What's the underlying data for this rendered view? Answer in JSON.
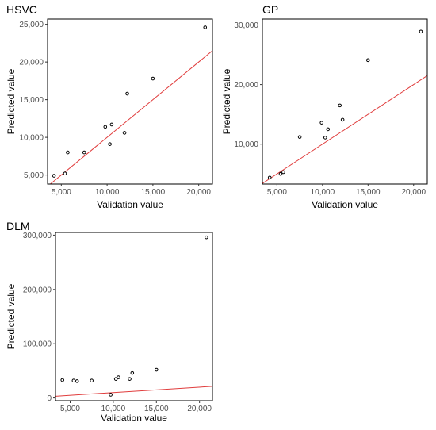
{
  "chart_data": [
    {
      "type": "scatter",
      "title": "HSVC",
      "xlabel": "Validation value",
      "ylabel": "Predicted value",
      "xlim": [
        3500,
        21500
      ],
      "ylim": [
        3800,
        25700
      ],
      "xticks": [
        5000,
        10000,
        15000,
        20000
      ],
      "xtick_labels": [
        "5,000",
        "10,000",
        "15,000",
        "20,000"
      ],
      "yticks": [
        5000,
        10000,
        15000,
        20000,
        25000
      ],
      "ytick_labels": [
        "5,000",
        "10,000",
        "15,000",
        "20,000",
        "25,000"
      ],
      "points": [
        {
          "x": 4200,
          "y": 4900
        },
        {
          "x": 5400,
          "y": 5200
        },
        {
          "x": 5700,
          "y": 8000
        },
        {
          "x": 7500,
          "y": 8000
        },
        {
          "x": 9800,
          "y": 11400
        },
        {
          "x": 10300,
          "y": 9100
        },
        {
          "x": 10500,
          "y": 11700
        },
        {
          "x": 11900,
          "y": 10600
        },
        {
          "x": 12200,
          "y": 15800
        },
        {
          "x": 15000,
          "y": 17800
        },
        {
          "x": 20700,
          "y": 24600
        }
      ],
      "fit_line": {
        "x": [
          3500,
          21500
        ],
        "y": [
          3500,
          21500
        ]
      },
      "grid": false,
      "legend": "none"
    },
    {
      "type": "scatter",
      "title": "GP",
      "xlabel": "Validation value",
      "ylabel": "Predicted value",
      "xlim": [
        3400,
        21500
      ],
      "ylim": [
        3300,
        31000
      ],
      "xticks": [
        5000,
        10000,
        15000,
        20000
      ],
      "xtick_labels": [
        "5,000",
        "10,000",
        "15,000",
        "20,000"
      ],
      "yticks": [
        10000,
        20000,
        30000
      ],
      "ytick_labels": [
        "10,000",
        "20,000",
        "30,000"
      ],
      "points": [
        {
          "x": 4200,
          "y": 4400
        },
        {
          "x": 5400,
          "y": 5000
        },
        {
          "x": 5700,
          "y": 5300
        },
        {
          "x": 7500,
          "y": 11200
        },
        {
          "x": 9900,
          "y": 13600
        },
        {
          "x": 10300,
          "y": 11100
        },
        {
          "x": 10600,
          "y": 12500
        },
        {
          "x": 11900,
          "y": 16500
        },
        {
          "x": 12200,
          "y": 14100
        },
        {
          "x": 15000,
          "y": 24100
        },
        {
          "x": 20800,
          "y": 28900
        }
      ],
      "fit_line": {
        "x": [
          3400,
          21500
        ],
        "y": [
          3400,
          21500
        ]
      },
      "grid": false,
      "legend": "none"
    },
    {
      "type": "scatter",
      "title": "DLM",
      "xlabel": "Validation value",
      "ylabel": "Predicted value",
      "xlim": [
        3300,
        21500
      ],
      "ylim": [
        -5000,
        305000
      ],
      "xticks": [
        5000,
        10000,
        15000,
        20000
      ],
      "xtick_labels": [
        "5,000",
        "10,000",
        "15,000",
        "20,000"
      ],
      "yticks": [
        0,
        100000,
        200000,
        300000
      ],
      "ytick_labels": [
        "0",
        "100,000",
        "200,000",
        "300,000"
      ],
      "points": [
        {
          "x": 4100,
          "y": 33000
        },
        {
          "x": 5400,
          "y": 32000
        },
        {
          "x": 5800,
          "y": 31000
        },
        {
          "x": 7500,
          "y": 32000
        },
        {
          "x": 9700,
          "y": 6000
        },
        {
          "x": 10300,
          "y": 35000
        },
        {
          "x": 10600,
          "y": 38000
        },
        {
          "x": 11900,
          "y": 35000
        },
        {
          "x": 12200,
          "y": 46000
        },
        {
          "x": 15000,
          "y": 52000
        },
        {
          "x": 20800,
          "y": 296000
        }
      ],
      "fit_line": {
        "x": [
          3300,
          21500
        ],
        "y": [
          3300,
          21500
        ]
      },
      "grid": false,
      "legend": "none"
    }
  ],
  "colors": {
    "fit_line": "#e03c3c",
    "point_stroke": "#000000",
    "point_fill": "#ffffff",
    "tick_text": "#4d4d4d"
  }
}
